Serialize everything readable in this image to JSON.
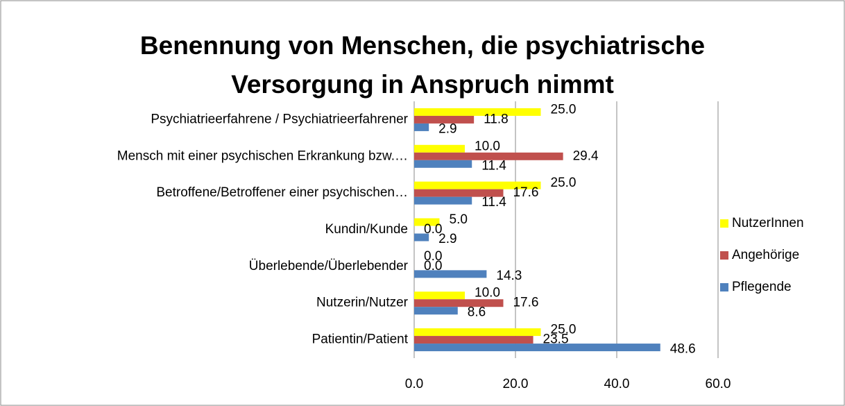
{
  "chart_data": {
    "type": "barh",
    "title": "Benennung von Menschen, die psychiatrische Versorgung in Anspruch nimmt",
    "categories": [
      "Psychiatrieerfahrene / Psychiatrieerfahrener",
      "Mensch mit einer psychischen Erkrankung bzw.…",
      "Betroffene/Betroffener einer psychischen…",
      "Kundin/Kunde",
      "Überlebende/Überlebender",
      "Nutzerin/Nutzer",
      "Patientin/Patient"
    ],
    "series": [
      {
        "name": "NutzerInnen",
        "color": "#ffff00",
        "values": [
          25,
          10,
          25,
          5,
          0,
          10,
          25
        ],
        "value_labels": [
          "25.0",
          "10.0",
          "25.0",
          "5.0",
          "0.0",
          "10.0",
          "25.0"
        ]
      },
      {
        "name": "Angehörige",
        "color": "#c0504d",
        "values": [
          11.8,
          29.4,
          17.6,
          0,
          0,
          17.6,
          23.5
        ],
        "value_labels": [
          "11.8",
          "29.4",
          "17.6",
          "0.0",
          "0.0",
          "17.6",
          "23.5"
        ]
      },
      {
        "name": "Pflegende",
        "color": "#4f81bd",
        "values": [
          2.9,
          11.4,
          11.4,
          2.9,
          14.3,
          8.6,
          48.6
        ],
        "value_labels": [
          "2.9",
          "11.4",
          "11.4",
          "2.9",
          "14.3",
          "8.6",
          "48.6"
        ]
      }
    ],
    "xlim": [
      0,
      60
    ],
    "xticks": [
      {
        "value": 0,
        "label": "0.0"
      },
      {
        "value": 20,
        "label": "20.0"
      },
      {
        "value": 40,
        "label": "40.0"
      },
      {
        "value": 60,
        "label": "60.0"
      }
    ],
    "grid": true,
    "legend": "right"
  }
}
